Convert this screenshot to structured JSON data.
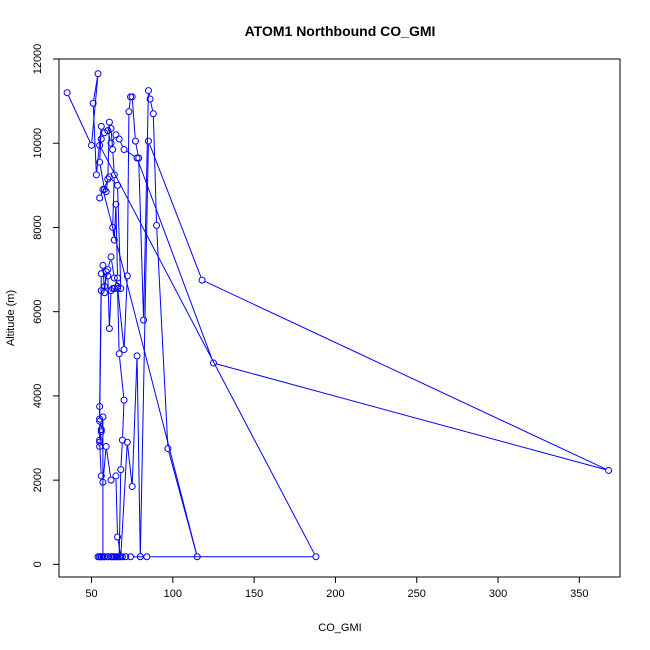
{
  "chart_data": {
    "type": "line",
    "title": "ATOM1 Northbound CO_GMI",
    "xlabel": "CO_GMI",
    "ylabel": "Altitude (m)",
    "xlim": [
      30,
      375
    ],
    "ylim": [
      -300,
      12000
    ],
    "x_ticks": [
      50,
      100,
      150,
      200,
      250,
      300,
      350
    ],
    "y_ticks": [
      0,
      2000,
      4000,
      6000,
      8000,
      10000,
      12000
    ],
    "grid": false,
    "legend": "none",
    "series_color": "#0000ff",
    "x": [
      35,
      50,
      54,
      51,
      53,
      56,
      55,
      58,
      59,
      60,
      61,
      62,
      63,
      64,
      63,
      64,
      65,
      66,
      64,
      63,
      62,
      61,
      60,
      59,
      58,
      57,
      56,
      55,
      55,
      56,
      55,
      55,
      56,
      57,
      57,
      55,
      54,
      56,
      58,
      60,
      62,
      63,
      64,
      65,
      66,
      67,
      68,
      69,
      70,
      67,
      66,
      66,
      70,
      72,
      73,
      74,
      75,
      77,
      79,
      82,
      85,
      86,
      88,
      90,
      97,
      115,
      57,
      55,
      61,
      66,
      68,
      64,
      62,
      60,
      58,
      56,
      55,
      55,
      56,
      57,
      59,
      62,
      65,
      66,
      68,
      72,
      75,
      78,
      80,
      85,
      118,
      368,
      125,
      78,
      70,
      67,
      65,
      62,
      60,
      58,
      56,
      55,
      188,
      84,
      74,
      71,
      69,
      66,
      64,
      62,
      60,
      58,
      56,
      55
    ],
    "y": [
      11200,
      9950,
      11650,
      10950,
      9250,
      10400,
      9550,
      8900,
      8850,
      9150,
      10500,
      10350,
      9850,
      9250,
      8000,
      7700,
      8550,
      6800,
      6550,
      6550,
      6500,
      5600,
      6850,
      6950,
      6450,
      7100,
      6900,
      3750,
      3450,
      3200,
      2950,
      2800,
      3150,
      3500,
      180,
      180,
      180,
      180,
      180,
      180,
      180,
      180,
      180,
      180,
      180,
      180,
      2250,
      2950,
      3900,
      5000,
      6550,
      6600,
      5100,
      6850,
      10750,
      11100,
      11100,
      10050,
      9650,
      5800,
      11250,
      11050,
      10700,
      8050,
      2750,
      180,
      8900,
      8700,
      9200,
      9000,
      6550,
      6800,
      7300,
      7000,
      6600,
      6500,
      3400,
      2900,
      2100,
      1950,
      2800,
      2000,
      2100,
      650,
      180,
      2900,
      1850,
      4950,
      180,
      10050,
      6750,
      2230,
      4780,
      9650,
      9850,
      10100,
      10200,
      10000,
      10300,
      10250,
      10100,
      9950,
      180,
      180,
      180,
      180,
      180,
      180,
      180,
      180,
      180,
      180,
      180,
      180
    ]
  }
}
